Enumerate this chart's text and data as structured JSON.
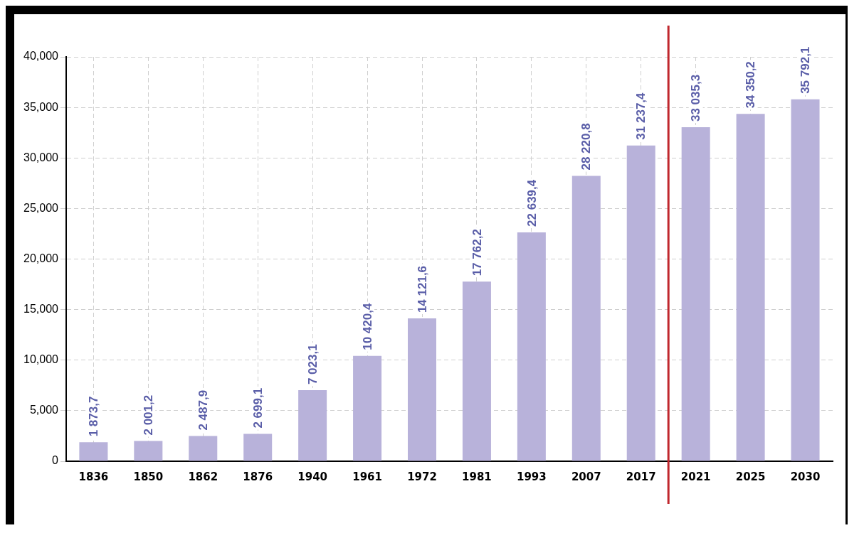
{
  "chart_data": {
    "type": "bar",
    "categories": [
      "1836",
      "1850",
      "1862",
      "1876",
      "1940",
      "1961",
      "1972",
      "1981",
      "1993",
      "2007",
      "2017",
      "2021",
      "2025",
      "2030"
    ],
    "values": [
      1873.7,
      2001.2,
      2487.9,
      2699.1,
      7023.1,
      10420.4,
      14121.6,
      17762.2,
      22639.4,
      28220.8,
      31237.4,
      33035.3,
      34350.2,
      35792.1
    ],
    "value_labels": [
      "1 873,7",
      "2 001,2",
      "2 487,9",
      "2 699,1",
      "7 023,1",
      "10 420,4",
      "14 121,6",
      "17 762,2",
      "22 639,4",
      "28 220,8",
      "31 237,4",
      "33 035,3",
      "34 350,2",
      "35 792,1"
    ],
    "color": "#b8b2da",
    "ylim": [
      0,
      40000
    ],
    "yticks": [
      0,
      {
        "value": 5000,
        "label": "5,000"
      },
      {
        "value": 10000,
        "label": "10,000"
      },
      {
        "value": 15000,
        "label": "15,000"
      },
      {
        "value": 20000,
        "label": "20,000"
      },
      {
        "value": 25000,
        "label": "25,000"
      },
      {
        "value": 30000,
        "label": "30,000"
      },
      {
        "value": 35000,
        "label": "35,000"
      },
      {
        "value": 40000,
        "label": "40,000"
      }
    ],
    "grid": true,
    "line_style": "dashed",
    "legend": false,
    "ref_lines": [
      {
        "axis": "x",
        "value": "2021",
        "color": "#c0272d"
      }
    ]
  }
}
